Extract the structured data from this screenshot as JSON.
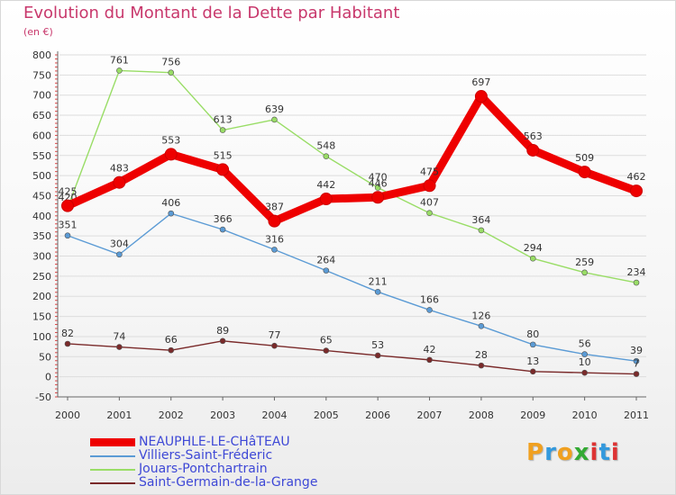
{
  "title": "Evolution du Montant de la Dette par Habitant",
  "subtitle": "(en €)",
  "logo": "Proxiti",
  "colors": {
    "title": "#c8386c",
    "axis_text": "#333333",
    "grid": "#dddddd"
  },
  "chart_data": {
    "type": "line",
    "title": "Evolution du Montant de la Dette par Habitant",
    "subtitle": "(en €)",
    "xlabel": "",
    "ylabel": "",
    "x": [
      "2000",
      "2001",
      "2002",
      "2003",
      "2004",
      "2005",
      "2006",
      "2007",
      "2008",
      "2009",
      "2010",
      "2011"
    ],
    "ylim": [
      -50,
      800
    ],
    "yticks": [
      -50,
      0,
      50,
      100,
      150,
      200,
      250,
      300,
      350,
      400,
      450,
      500,
      550,
      600,
      650,
      700,
      750,
      800
    ],
    "grid": "horizontal",
    "legend_position": "bottom-left",
    "series": [
      {
        "name": "NEAUPHLE-LE-CHâTEAU",
        "color": "#ee0000",
        "values": [
          425,
          483,
          553,
          515,
          387,
          442,
          446,
          475,
          697,
          563,
          509,
          462
        ],
        "labels": [
          "425",
          "483",
          "553",
          "515",
          "387",
          "442",
          "446",
          "475",
          "697",
          "563",
          "509",
          "462"
        ]
      },
      {
        "name": "Villiers-Saint-Fréderic",
        "color": "#5b9bd5",
        "values": [
          351,
          304,
          406,
          366,
          316,
          264,
          211,
          166,
          126,
          80,
          56,
          39
        ],
        "labels": [
          "351",
          "304",
          "406",
          "366",
          "316",
          "264",
          "211",
          "166",
          "126",
          "80",
          "56",
          "39"
        ]
      },
      {
        "name": "Jouars-Pontchartrain",
        "color": "#99dd66",
        "values": [
          420,
          761,
          756,
          613,
          639,
          548,
          470,
          407,
          364,
          294,
          259,
          234
        ],
        "labels": [
          "420",
          "761",
          "756",
          "613",
          "639",
          "548",
          "470",
          "407",
          "364",
          "294",
          "259",
          "234"
        ]
      },
      {
        "name": "Saint-Germain-de-la-Grange",
        "color": "#7a2a2a",
        "values": [
          82,
          74,
          66,
          89,
          77,
          65,
          53,
          42,
          28,
          13,
          10,
          7
        ],
        "labels": [
          "82",
          "74",
          "66",
          "89",
          "77",
          "65",
          "53",
          "42",
          "28",
          "13",
          "10",
          "7"
        ]
      }
    ]
  }
}
